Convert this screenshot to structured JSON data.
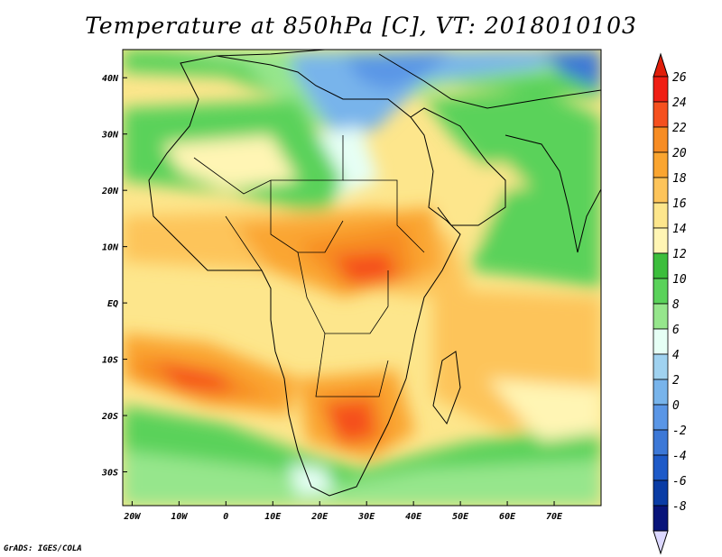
{
  "title": "Temperature at 850hPa [C], VT: 2018010103",
  "footer": "GrADS: IGES/COLA",
  "map": {
    "lon_range": [
      -22,
      80
    ],
    "lat_range": [
      -36,
      45
    ],
    "lon_ticks": [
      {
        "value": -20,
        "label": "20W"
      },
      {
        "value": -10,
        "label": "10W"
      },
      {
        "value": 0,
        "label": "0"
      },
      {
        "value": 10,
        "label": "10E"
      },
      {
        "value": 20,
        "label": "20E"
      },
      {
        "value": 30,
        "label": "30E"
      },
      {
        "value": 40,
        "label": "40E"
      },
      {
        "value": 50,
        "label": "50E"
      },
      {
        "value": 60,
        "label": "60E"
      },
      {
        "value": 70,
        "label": "70E"
      }
    ],
    "lat_ticks": [
      {
        "value": 40,
        "label": "40N"
      },
      {
        "value": 30,
        "label": "30N"
      },
      {
        "value": 20,
        "label": "20N"
      },
      {
        "value": 10,
        "label": "10N"
      },
      {
        "value": 0,
        "label": "EQ"
      },
      {
        "value": -10,
        "label": "10S"
      },
      {
        "value": -20,
        "label": "20S"
      },
      {
        "value": -30,
        "label": "30S"
      }
    ]
  },
  "colorbar": {
    "levels": [
      "26",
      "24",
      "22",
      "20",
      "18",
      "16",
      "14",
      "12",
      "10",
      "8",
      "6",
      "4",
      "2",
      "0",
      "-2",
      "-4",
      "-6",
      "-8"
    ],
    "colors": [
      "#f01e14",
      "#f5501e",
      "#f78c23",
      "#faa530",
      "#fdc45a",
      "#fde68c",
      "#fff5b4",
      "#3cbe3c",
      "#5ad25a",
      "#96e68c",
      "#e6fff5",
      "#a0d2f0",
      "#78b4eb",
      "#5a96e6",
      "#3c78d7",
      "#1e5ac8",
      "#0a3ca5",
      "#08147a"
    ],
    "top_color": "#e01e0a",
    "bottom_color": "#dcd8ff"
  }
}
